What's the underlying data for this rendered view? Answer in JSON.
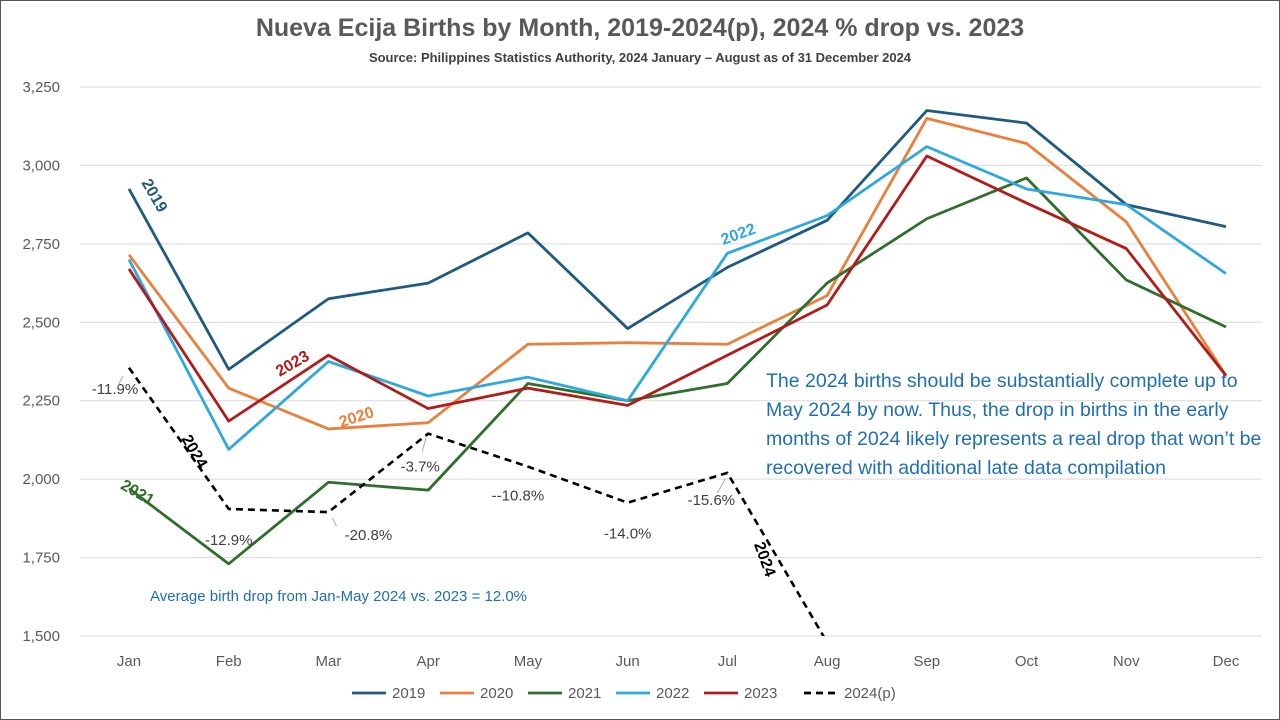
{
  "chart_data": {
    "type": "line",
    "title": "Nueva Ecija Births by Month, 2019-2024(p), 2024 % drop vs. 2023",
    "subtitle": "Source: Philippines Statistics Authority, 2024 January – August as of 31 December 2024",
    "categories": [
      "Jan",
      "Feb",
      "Mar",
      "Apr",
      "May",
      "Jun",
      "Jul",
      "Aug",
      "Sep",
      "Oct",
      "Nov",
      "Dec"
    ],
    "ylim": [
      1500,
      3250
    ],
    "yticks": [
      1500,
      1750,
      2000,
      2250,
      2500,
      2750,
      3000,
      3250
    ],
    "ytick_labels": [
      "1,500",
      "1,750",
      "2,000",
      "2,250",
      "2,500",
      "2,750",
      "3,000",
      "3,250"
    ],
    "grid": true,
    "legend_position": "bottom",
    "series": [
      {
        "name": "2019",
        "color": "#1f5a7f",
        "dashed": false,
        "label": "2019",
        "values": [
          2925,
          2350,
          2575,
          2625,
          2785,
          2480,
          2675,
          2825,
          3175,
          3135,
          2875,
          2805
        ]
      },
      {
        "name": "2020",
        "color": "#e9803c",
        "dashed": false,
        "label": "2020",
        "values": [
          2715,
          2290,
          2160,
          2180,
          2430,
          2435,
          2430,
          2585,
          3150,
          3070,
          2820,
          2330
        ]
      },
      {
        "name": "2021",
        "color": "#2f6e2c",
        "dashed": false,
        "label": "2021",
        "values": [
          1970,
          1730,
          1990,
          1965,
          2305,
          2250,
          2305,
          2625,
          2830,
          2960,
          2635,
          2485
        ]
      },
      {
        "name": "2022",
        "color": "#2ea8df",
        "dashed": false,
        "label": "2022",
        "values": [
          2700,
          2095,
          2375,
          2265,
          2325,
          2250,
          2720,
          2840,
          3060,
          2925,
          2875,
          2655
        ]
      },
      {
        "name": "2023",
        "color": "#b31b1b",
        "dashed": false,
        "label": "2023",
        "values": [
          2670,
          2185,
          2395,
          2225,
          2290,
          2235,
          2395,
          2555,
          3030,
          2880,
          2735,
          2330
        ]
      },
      {
        "name": "2024(p)",
        "color": "#000000",
        "dashed": true,
        "label": "2024",
        "values": [
          2355,
          1905,
          1895,
          2145,
          2040,
          1925,
          2020,
          1480,
          null,
          null,
          null,
          null
        ]
      }
    ],
    "drop_labels": [
      {
        "month": "Jan",
        "text": "-11.9%"
      },
      {
        "month": "Feb",
        "text": "-12.9%"
      },
      {
        "month": "Mar",
        "text": "-20.8%"
      },
      {
        "month": "Apr",
        "text": "-3.7%"
      },
      {
        "month": "May",
        "text": "--10.8%"
      },
      {
        "month": "Jun",
        "text": "-14.0%"
      },
      {
        "month": "Jul",
        "text": "-15.6%"
      }
    ]
  },
  "annotations": {
    "note": "The 2024 births should be substantially complete up to May 2024 by now.  Thus, the drop in births in the early months of 2024 likely represents a real drop that won’t be recovered with additional late data compilation",
    "average": "Average birth drop from Jan-May 2024 vs. 2023 = 12.0%"
  }
}
